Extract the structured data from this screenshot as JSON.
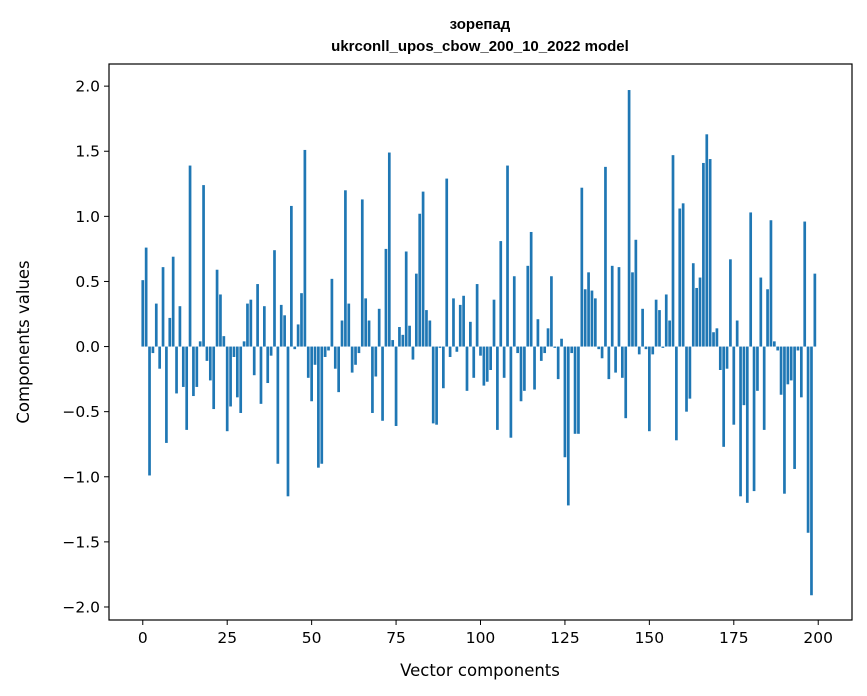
{
  "chart_data": {
    "type": "bar",
    "title": "зорепад",
    "subtitle": "ukrconll_upos_cbow_200_10_2022 model",
    "xlabel": "Vector components",
    "ylabel": "Components values",
    "xlim": [
      -10,
      210
    ],
    "ylim": [
      -2.1,
      2.17
    ],
    "xticks": [
      0,
      25,
      50,
      75,
      100,
      125,
      150,
      175,
      200
    ],
    "yticks": [
      -2.0,
      -1.5,
      -1.0,
      -0.5,
      0.0,
      0.5,
      1.0,
      1.5,
      2.0
    ],
    "xtick_labels": [
      "0",
      "25",
      "50",
      "75",
      "100",
      "125",
      "150",
      "175",
      "200"
    ],
    "ytick_labels": [
      "−2.0",
      "−1.5",
      "−1.0",
      "−0.5",
      "0.0",
      "0.5",
      "1.0",
      "1.5",
      "2.0"
    ],
    "bar_color": "#1f77b4",
    "grid": false,
    "values": [
      0.51,
      0.76,
      -0.99,
      -0.05,
      0.33,
      -0.17,
      0.61,
      -0.74,
      0.22,
      0.69,
      -0.36,
      0.31,
      -0.31,
      -0.64,
      1.39,
      -0.38,
      -0.31,
      0.04,
      1.24,
      -0.11,
      -0.26,
      -0.48,
      0.59,
      0.4,
      0.08,
      -0.65,
      -0.46,
      -0.08,
      -0.39,
      -0.51,
      0.04,
      0.33,
      0.36,
      -0.22,
      0.48,
      -0.44,
      0.31,
      -0.28,
      -0.07,
      0.74,
      -0.9,
      0.32,
      0.24,
      -1.15,
      1.08,
      -0.02,
      0.17,
      0.41,
      1.51,
      -0.24,
      -0.42,
      -0.14,
      -0.93,
      -0.9,
      -0.08,
      -0.03,
      0.52,
      -0.17,
      -0.35,
      0.2,
      1.2,
      0.33,
      -0.2,
      -0.14,
      -0.05,
      1.13,
      0.37,
      0.2,
      -0.51,
      -0.23,
      0.29,
      -0.57,
      0.75,
      1.49,
      0.05,
      -0.61,
      0.15,
      0.09,
      0.73,
      0.16,
      -0.1,
      0.56,
      1.02,
      1.19,
      0.28,
      0.2,
      -0.59,
      -0.6,
      -0.01,
      -0.32,
      1.29,
      -0.08,
      0.37,
      -0.04,
      0.32,
      0.39,
      -0.34,
      0.19,
      -0.24,
      0.48,
      -0.07,
      -0.3,
      -0.27,
      -0.18,
      0.36,
      -0.64,
      0.81,
      -0.24,
      1.39,
      -0.7,
      0.54,
      -0.05,
      -0.42,
      -0.34,
      0.62,
      0.88,
      -0.33,
      0.21,
      -0.11,
      -0.05,
      0.14,
      0.54,
      -0.01,
      -0.25,
      0.06,
      -0.85,
      -1.22,
      -0.05,
      -0.67,
      -0.67,
      1.22,
      0.44,
      0.57,
      0.43,
      0.37,
      -0.02,
      -0.09,
      1.38,
      -0.25,
      0.62,
      -0.2,
      0.61,
      -0.24,
      -0.55,
      1.97,
      0.57,
      0.82,
      -0.06,
      0.29,
      -0.02,
      -0.65,
      -0.06,
      0.36,
      0.28,
      -0.01,
      0.4,
      0.2,
      1.47,
      -0.72,
      1.06,
      1.1,
      -0.5,
      -0.4,
      0.64,
      0.45,
      0.53,
      1.41,
      1.63,
      1.44,
      0.11,
      0.14,
      -0.18,
      -0.77,
      -0.17,
      0.67,
      -0.6,
      0.2,
      -1.15,
      -0.45,
      -1.2,
      1.03,
      -1.11,
      -0.34,
      0.53,
      -0.64,
      0.44,
      0.97,
      0.04,
      -0.03,
      -0.37,
      -1.13,
      -0.29,
      -0.26,
      -0.94,
      -0.03,
      -0.39,
      0.96,
      -1.43,
      -1.91,
      0.56
    ]
  }
}
